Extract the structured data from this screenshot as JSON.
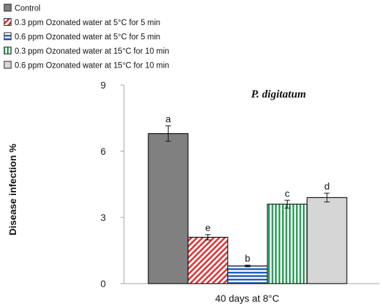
{
  "chart_data": {
    "type": "bar",
    "title": "P. digitatum",
    "ylabel": "Disease infection  %",
    "categories": [
      "40 days at 8°C"
    ],
    "ylim": [
      0,
      9
    ],
    "yticks": [
      0,
      3,
      6,
      9
    ],
    "grid": false,
    "legend_position": "top-left",
    "series": [
      {
        "name": "Control",
        "values": [
          6.8
        ],
        "error": [
          0.35
        ],
        "label": "a",
        "color": "#808080",
        "pattern": "solid"
      },
      {
        "name": "0.3 ppm Ozonated water at 5°C for 5 min",
        "values": [
          2.1
        ],
        "error": [
          0.12
        ],
        "label": "e",
        "color": "#e03030",
        "pattern": "diagonal"
      },
      {
        "name": "0.6 ppm Ozonated water at 5°C for 5 min",
        "values": [
          0.8
        ],
        "error": [
          0.04
        ],
        "label": "b",
        "color": "#1f5fbf",
        "pattern": "horizontal"
      },
      {
        "name": "0.3 ppm Ozonated water at 15°C for 10 min",
        "values": [
          3.6
        ],
        "error": [
          0.18
        ],
        "label": "c",
        "color": "#22a050",
        "pattern": "vertical"
      },
      {
        "name": "0.6 ppm Ozonated water at 15°C for 10 min",
        "values": [
          3.9
        ],
        "error": [
          0.2
        ],
        "label": "d",
        "color": "#d6d6d6",
        "pattern": "solid"
      }
    ]
  }
}
